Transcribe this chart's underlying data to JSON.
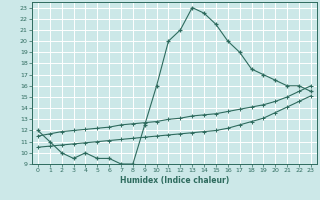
{
  "xlabel": "Humidex (Indice chaleur)",
  "x": [
    0,
    1,
    2,
    3,
    4,
    5,
    6,
    7,
    8,
    9,
    10,
    11,
    12,
    13,
    14,
    15,
    16,
    17,
    18,
    19,
    20,
    21,
    22,
    23
  ],
  "y_top": [
    12,
    11,
    10,
    9.5,
    10,
    9.5,
    9.5,
    9,
    9,
    12.5,
    16,
    20,
    21,
    23,
    22.5,
    21.5,
    20,
    19,
    17.5,
    17,
    16.5,
    16,
    16,
    15.5
  ],
  "y_mid": [
    11.5,
    11.7,
    11.9,
    12.0,
    12.1,
    12.2,
    12.3,
    12.5,
    12.6,
    12.7,
    12.8,
    13.0,
    13.1,
    13.3,
    13.4,
    13.5,
    13.7,
    13.9,
    14.1,
    14.3,
    14.6,
    15.0,
    15.5,
    16.0
  ],
  "y_bot": [
    10.5,
    10.6,
    10.7,
    10.8,
    10.9,
    11.0,
    11.1,
    11.2,
    11.3,
    11.4,
    11.5,
    11.6,
    11.7,
    11.8,
    11.9,
    12.0,
    12.2,
    12.5,
    12.8,
    13.1,
    13.6,
    14.1,
    14.6,
    15.1
  ],
  "line_color": "#2e6b5e",
  "bg_color": "#cce8e8",
  "grid_color": "#ffffff",
  "ylim": [
    9,
    23.5
  ],
  "xlim": [
    -0.5,
    23.5
  ],
  "yticks": [
    9,
    10,
    11,
    12,
    13,
    14,
    15,
    16,
    17,
    18,
    19,
    20,
    21,
    22,
    23
  ],
  "xticks": [
    0,
    1,
    2,
    3,
    4,
    5,
    6,
    7,
    8,
    9,
    10,
    11,
    12,
    13,
    14,
    15,
    16,
    17,
    18,
    19,
    20,
    21,
    22,
    23
  ]
}
